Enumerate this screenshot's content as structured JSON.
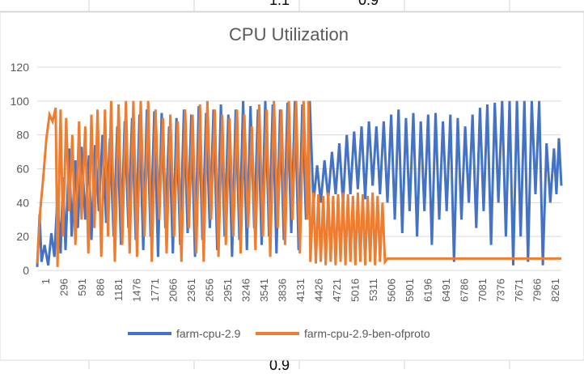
{
  "spreadsheet": {
    "top_values": [
      "1.1",
      "0.9"
    ],
    "bottom_values": [
      "0.9"
    ]
  },
  "colors": {
    "series1": "#4472C4",
    "series2": "#ED7D31",
    "grid": "#D9D9D9",
    "axis_text": "#595959",
    "title_text": "#595959"
  },
  "chart_data": {
    "type": "line",
    "title": "CPU Utilization",
    "xlabel": "",
    "ylabel": "",
    "ylim": [
      0,
      120
    ],
    "yticks": [
      0,
      20,
      40,
      60,
      80,
      100,
      120
    ],
    "grid": true,
    "legend_position": "bottom",
    "x_domain": [
      1,
      8500
    ],
    "x_tick_labels": [
      "1",
      "296",
      "591",
      "886",
      "1181",
      "1476",
      "1771",
      "2066",
      "2361",
      "2656",
      "2951",
      "3246",
      "3541",
      "3836",
      "4131",
      "4426",
      "4721",
      "5016",
      "5311",
      "5606",
      "5901",
      "6196",
      "6491",
      "6786",
      "7081",
      "7376",
      "7671",
      "7966",
      "8261"
    ],
    "series": [
      {
        "name": "farm-cpu-2.9",
        "points": [
          [
            1,
            2
          ],
          [
            40,
            33
          ],
          [
            70,
            5
          ],
          [
            120,
            15
          ],
          [
            180,
            3
          ],
          [
            230,
            22
          ],
          [
            280,
            8
          ],
          [
            330,
            45
          ],
          [
            380,
            10
          ],
          [
            420,
            55
          ],
          [
            460,
            12
          ],
          [
            520,
            72
          ],
          [
            560,
            20
          ],
          [
            620,
            65
          ],
          [
            660,
            25
          ],
          [
            720,
            73
          ],
          [
            780,
            30
          ],
          [
            840,
            68
          ],
          [
            880,
            18
          ],
          [
            940,
            74
          ],
          [
            1000,
            35
          ],
          [
            1060,
            80
          ],
          [
            1120,
            28
          ],
          [
            1180,
            78
          ],
          [
            1240,
            20
          ],
          [
            1300,
            85
          ],
          [
            1360,
            15
          ],
          [
            1420,
            88
          ],
          [
            1480,
            25
          ],
          [
            1540,
            90
          ],
          [
            1600,
            18
          ],
          [
            1660,
            92
          ],
          [
            1720,
            12
          ],
          [
            1780,
            95
          ],
          [
            1840,
            20
          ],
          [
            1900,
            94
          ],
          [
            1960,
            8
          ],
          [
            2020,
            93
          ],
          [
            2080,
            25
          ],
          [
            2140,
            85
          ],
          [
            2200,
            10
          ],
          [
            2260,
            90
          ],
          [
            2320,
            15
          ],
          [
            2380,
            95
          ],
          [
            2440,
            22
          ],
          [
            2500,
            92
          ],
          [
            2560,
            8
          ],
          [
            2620,
            97
          ],
          [
            2680,
            18
          ],
          [
            2740,
            93
          ],
          [
            2800,
            25
          ],
          [
            2860,
            95
          ],
          [
            2920,
            12
          ],
          [
            2980,
            98
          ],
          [
            3040,
            20
          ],
          [
            3100,
            92
          ],
          [
            3160,
            8
          ],
          [
            3220,
            95
          ],
          [
            3280,
            18
          ],
          [
            3340,
            100
          ],
          [
            3400,
            12
          ],
          [
            3460,
            97
          ],
          [
            3520,
            25
          ],
          [
            3580,
            95
          ],
          [
            3640,
            15
          ],
          [
            3700,
            100
          ],
          [
            3760,
            20
          ],
          [
            3820,
            98
          ],
          [
            3880,
            10
          ],
          [
            3940,
            95
          ],
          [
            4000,
            18
          ],
          [
            4060,
            99
          ],
          [
            4120,
            22
          ],
          [
            4180,
            100
          ],
          [
            4240,
            12
          ],
          [
            4300,
            98
          ],
          [
            4360,
            30
          ],
          [
            4420,
            100
          ],
          [
            4480,
            40
          ],
          [
            4540,
            62
          ],
          [
            4600,
            40
          ],
          [
            4660,
            65
          ],
          [
            4720,
            42
          ],
          [
            4780,
            70
          ],
          [
            4840,
            45
          ],
          [
            4900,
            75
          ],
          [
            4960,
            40
          ],
          [
            5020,
            80
          ],
          [
            5080,
            45
          ],
          [
            5140,
            82
          ],
          [
            5200,
            48
          ],
          [
            5260,
            85
          ],
          [
            5320,
            42
          ],
          [
            5380,
            88
          ],
          [
            5440,
            50
          ],
          [
            5500,
            85
          ],
          [
            5560,
            45
          ],
          [
            5620,
            88
          ],
          [
            5680,
            40
          ],
          [
            5740,
            92
          ],
          [
            5800,
            30
          ],
          [
            5860,
            95
          ],
          [
            5920,
            22
          ],
          [
            5980,
            90
          ],
          [
            6040,
            35
          ],
          [
            6100,
            93
          ],
          [
            6160,
            20
          ],
          [
            6220,
            88
          ],
          [
            6280,
            35
          ],
          [
            6340,
            92
          ],
          [
            6400,
            15
          ],
          [
            6460,
            93
          ],
          [
            6520,
            30
          ],
          [
            6580,
            88
          ],
          [
            6640,
            35
          ],
          [
            6700,
            92
          ],
          [
            6760,
            5
          ],
          [
            6820,
            90
          ],
          [
            6880,
            30
          ],
          [
            6940,
            85
          ],
          [
            7000,
            40
          ],
          [
            7060,
            92
          ],
          [
            7120,
            25
          ],
          [
            7180,
            96
          ],
          [
            7240,
            35
          ],
          [
            7300,
            98
          ],
          [
            7360,
            15
          ],
          [
            7420,
            99
          ],
          [
            7480,
            40
          ],
          [
            7540,
            100
          ],
          [
            7600,
            20
          ],
          [
            7660,
            100
          ],
          [
            7720,
            3
          ],
          [
            7780,
            100
          ],
          [
            7840,
            20
          ],
          [
            7900,
            100
          ],
          [
            7960,
            5
          ],
          [
            8020,
            100
          ],
          [
            8080,
            45
          ],
          [
            8140,
            100
          ],
          [
            8200,
            3
          ],
          [
            8260,
            75
          ],
          [
            8320,
            40
          ],
          [
            8380,
            72
          ],
          [
            8420,
            45
          ],
          [
            8460,
            78
          ],
          [
            8500,
            50
          ]
        ]
      },
      {
        "name": "farm-cpu-2.9-ben-ofproto",
        "points": [
          [
            1,
            4
          ],
          [
            50,
            35
          ],
          [
            100,
            55
          ],
          [
            150,
            78
          ],
          [
            200,
            92
          ],
          [
            250,
            88
          ],
          [
            300,
            96
          ],
          [
            330,
            2
          ],
          [
            380,
            95
          ],
          [
            420,
            20
          ],
          [
            470,
            90
          ],
          [
            520,
            35
          ],
          [
            570,
            80
          ],
          [
            620,
            15
          ],
          [
            680,
            88
          ],
          [
            720,
            30
          ],
          [
            780,
            85
          ],
          [
            830,
            10
          ],
          [
            880,
            92
          ],
          [
            930,
            25
          ],
          [
            980,
            95
          ],
          [
            1040,
            8
          ],
          [
            1100,
            95
          ],
          [
            1150,
            20
          ],
          [
            1200,
            100
          ],
          [
            1260,
            5
          ],
          [
            1320,
            98
          ],
          [
            1380,
            15
          ],
          [
            1440,
            100
          ],
          [
            1500,
            10
          ],
          [
            1560,
            100
          ],
          [
            1620,
            8
          ],
          [
            1680,
            100
          ],
          [
            1740,
            20
          ],
          [
            1800,
            100
          ],
          [
            1860,
            5
          ],
          [
            1920,
            95
          ],
          [
            1980,
            30
          ],
          [
            2040,
            90
          ],
          [
            2100,
            10
          ],
          [
            2160,
            92
          ],
          [
            2220,
            20
          ],
          [
            2280,
            88
          ],
          [
            2340,
            5
          ],
          [
            2400,
            95
          ],
          [
            2460,
            25
          ],
          [
            2520,
            92
          ],
          [
            2580,
            10
          ],
          [
            2640,
            98
          ],
          [
            2700,
            5
          ],
          [
            2760,
            100
          ],
          [
            2820,
            30
          ],
          [
            2880,
            95
          ],
          [
            2940,
            8
          ],
          [
            3000,
            92
          ],
          [
            3060,
            15
          ],
          [
            3120,
            90
          ],
          [
            3180,
            20
          ],
          [
            3240,
            95
          ],
          [
            3300,
            10
          ],
          [
            3360,
            92
          ],
          [
            3420,
            25
          ],
          [
            3480,
            85
          ],
          [
            3540,
            12
          ],
          [
            3600,
            98
          ],
          [
            3660,
            20
          ],
          [
            3720,
            95
          ],
          [
            3780,
            8
          ],
          [
            3840,
            100
          ],
          [
            3900,
            25
          ],
          [
            3960,
            95
          ],
          [
            4020,
            15
          ],
          [
            4080,
            100
          ],
          [
            4140,
            30
          ],
          [
            4200,
            100
          ],
          [
            4260,
            10
          ],
          [
            4320,
            100
          ],
          [
            4380,
            30
          ],
          [
            4400,
            100
          ],
          [
            4430,
            5
          ],
          [
            4480,
            46
          ],
          [
            4520,
            4
          ],
          [
            4560,
            45
          ],
          [
            4600,
            5
          ],
          [
            4640,
            44
          ],
          [
            4680,
            3
          ],
          [
            4720,
            46
          ],
          [
            4760,
            5
          ],
          [
            4800,
            44
          ],
          [
            4840,
            3
          ],
          [
            4880,
            45
          ],
          [
            4920,
            5
          ],
          [
            4960,
            46
          ],
          [
            5000,
            3
          ],
          [
            5040,
            45
          ],
          [
            5080,
            5
          ],
          [
            5120,
            44
          ],
          [
            5160,
            3
          ],
          [
            5200,
            46
          ],
          [
            5240,
            5
          ],
          [
            5280,
            45
          ],
          [
            5320,
            3
          ],
          [
            5360,
            44
          ],
          [
            5400,
            5
          ],
          [
            5440,
            46
          ],
          [
            5480,
            3
          ],
          [
            5520,
            44
          ],
          [
            5560,
            5
          ],
          [
            5600,
            40
          ],
          [
            5640,
            5
          ],
          [
            5680,
            7
          ],
          [
            6000,
            7
          ],
          [
            6500,
            7
          ],
          [
            7000,
            7
          ],
          [
            7500,
            7
          ],
          [
            8000,
            7
          ],
          [
            8500,
            7
          ]
        ]
      }
    ]
  }
}
